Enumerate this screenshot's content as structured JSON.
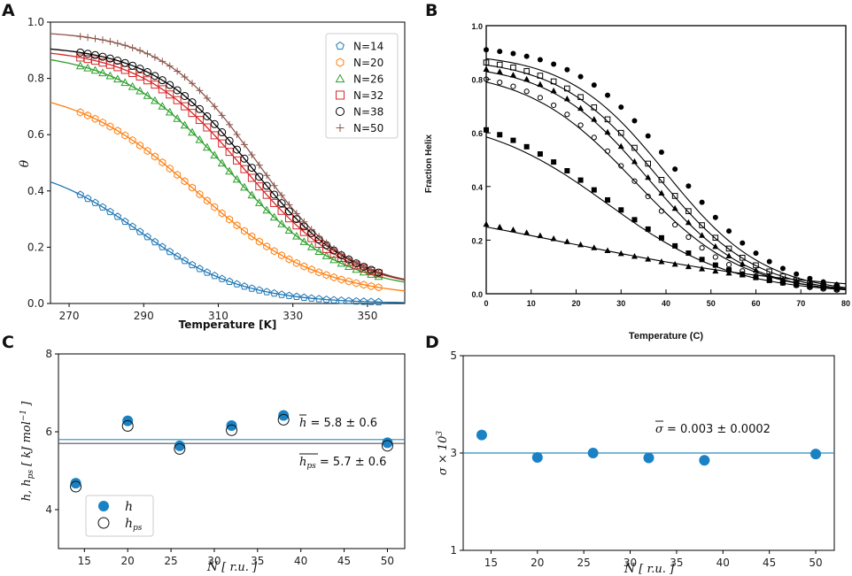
{
  "panels": {
    "a": "A",
    "b": "B",
    "c": "C",
    "d": "D"
  },
  "colors": {
    "N14": "#1f77b4",
    "N20": "#ff7f0e",
    "N26": "#2ca02c",
    "N32": "#d62728",
    "N38": "#000000",
    "N50": "#8c564b",
    "fit_c": "#4a4a4a",
    "dots": "#1a82c4",
    "hline": "#2b8bbf"
  },
  "chart_data": [
    {
      "id": "A",
      "type": "line",
      "title": "",
      "xlabel": "Temperature [K]",
      "ylabel": "θ",
      "xlim": [
        265,
        360
      ],
      "ylim": [
        0.0,
        1.0
      ],
      "xticks": [
        270,
        290,
        310,
        330,
        350
      ],
      "xtick_labels": [
        "270",
        "290",
        "310",
        "330",
        "350"
      ],
      "yticks": [
        0.0,
        0.2,
        0.4,
        0.6,
        0.8,
        1.0
      ],
      "ytick_labels": [
        "0.0",
        "0.2",
        "0.4",
        "0.6",
        "0.8",
        "1.0"
      ],
      "legend_position": "top-right",
      "points_x_range": [
        273,
        353,
        2
      ],
      "series": [
        {
          "name": "N=14",
          "marker": "pentagon",
          "color": "#1f77b4",
          "start": 0.51,
          "end": 0.0,
          "mid": 289,
          "width": 14
        },
        {
          "name": "N=20",
          "marker": "hexagon",
          "color": "#ff7f0e",
          "start": 0.78,
          "end": 0.02,
          "mid": 304,
          "width": 16.5
        },
        {
          "name": "N=26",
          "marker": "triangle",
          "color": "#2ca02c",
          "start": 0.9,
          "end": 0.04,
          "mid": 313,
          "width": 15
        },
        {
          "name": "N=32",
          "marker": "square",
          "color": "#d62728",
          "start": 0.91,
          "end": 0.045,
          "mid": 317,
          "width": 14
        },
        {
          "name": "N=38",
          "marker": "circle",
          "color": "#000000",
          "start": 0.92,
          "end": 0.045,
          "mid": 319,
          "width": 13.5
        },
        {
          "name": "N=50",
          "marker": "plus",
          "color": "#8c564b",
          "start": 0.97,
          "end": 0.05,
          "mid": 320,
          "width": 12.5
        }
      ]
    },
    {
      "id": "B",
      "type": "scatter",
      "title": "",
      "xlabel": "Temperature  (C)",
      "ylabel": "Fraction  Helix",
      "xlim": [
        0,
        80
      ],
      "ylim": [
        0.0,
        1.0
      ],
      "xticks": [
        0,
        10,
        20,
        30,
        40,
        50,
        60,
        70,
        80
      ],
      "xtick_labels": [
        "0",
        "10",
        "20",
        "30",
        "40",
        "50",
        "60",
        "70",
        "80"
      ],
      "yticks": [
        0.0,
        0.2,
        0.4,
        0.6,
        0.8,
        1.0
      ],
      "ytick_labels": [
        "0.0",
        "0.2",
        "0.4",
        "0.6",
        "0.8",
        "1.0"
      ],
      "series": [
        {
          "name": "filled-circle",
          "marker": "filled-circle",
          "step": 3,
          "start": 0.93,
          "end": 0.0,
          "mid": 42,
          "width": 11,
          "fit": [
            0.9,
            0.0,
            40,
            11
          ]
        },
        {
          "name": "open-square",
          "marker": "open-square",
          "step": 3,
          "start": 0.89,
          "end": 0.0,
          "mid": 38,
          "width": 11,
          "fit": [
            0.88,
            0.0,
            38,
            11
          ]
        },
        {
          "name": "filled-triangle-up",
          "marker": "filled-triangle",
          "step": 3,
          "start": 0.87,
          "end": 0.0,
          "mid": 36,
          "width": 11,
          "fit": [
            0.86,
            0.0,
            36,
            11
          ]
        },
        {
          "name": "open-circle",
          "marker": "open-circle",
          "step": 3,
          "start": 0.84,
          "end": 0.0,
          "mid": 33,
          "width": 11,
          "fit": [
            0.84,
            0.0,
            33,
            12
          ]
        },
        {
          "name": "filled-square",
          "marker": "filled-square",
          "step": 3,
          "start": 0.7,
          "end": 0.0,
          "mid": 27,
          "width": 14,
          "fit": [
            0.67,
            0.0,
            27,
            14
          ]
        },
        {
          "name": "filled-triangle-low",
          "marker": "filled-triangle",
          "step": 3,
          "start": 0.39,
          "end": 0.0,
          "mid": 18,
          "width": 26,
          "fit": [
            0.38,
            0.0,
            18,
            28
          ]
        }
      ]
    },
    {
      "id": "C",
      "type": "scatter",
      "title": "",
      "xlabel": "N [ r.u. ]",
      "ylabel": "h, h_ps [ kJ mol^-1 ]",
      "xlim": [
        12,
        52
      ],
      "ylim": [
        3.0,
        8.0
      ],
      "xticks": [
        15,
        20,
        25,
        30,
        35,
        40,
        45,
        50
      ],
      "xtick_labels": [
        "15",
        "20",
        "25",
        "30",
        "35",
        "40",
        "45",
        "50"
      ],
      "yticks": [
        4,
        6,
        8
      ],
      "ytick_labels": [
        "4",
        "6",
        "8"
      ],
      "x": [
        14,
        20,
        26,
        32,
        38,
        50
      ],
      "series": [
        {
          "name": "h",
          "label": "h",
          "values": [
            4.68,
            6.28,
            5.64,
            6.16,
            6.42,
            5.72
          ]
        },
        {
          "name": "h_ps",
          "label": "h",
          "sub": "ps",
          "values": [
            4.59,
            6.15,
            5.56,
            6.04,
            6.31,
            5.64
          ]
        }
      ],
      "hlines": [
        {
          "name": "h_mean",
          "value": 5.8,
          "color": "#2b8bbf"
        },
        {
          "name": "hps_mean",
          "value": 5.7,
          "color": "#555555"
        }
      ],
      "annotations": [
        {
          "name": "h-mean",
          "text": "h = 5.8 ± 0.6"
        },
        {
          "name": "hps-mean",
          "text": "h_ps = 5.7 ± 0.6"
        }
      ],
      "legend_position": "bottom-left"
    },
    {
      "id": "D",
      "type": "scatter",
      "title": "",
      "xlabel": "N [ r.u. ]",
      "ylabel": "σ × 10^3",
      "xlim": [
        12,
        52
      ],
      "ylim": [
        1,
        5
      ],
      "xticks": [
        15,
        20,
        25,
        30,
        35,
        40,
        45,
        50
      ],
      "xtick_labels": [
        "15",
        "20",
        "25",
        "30",
        "35",
        "40",
        "45",
        "50"
      ],
      "yticks": [
        1,
        3,
        5
      ],
      "ytick_labels": [
        "1",
        "3",
        "5"
      ],
      "x": [
        14,
        20,
        26,
        32,
        38,
        50
      ],
      "series": [
        {
          "name": "sigma",
          "values": [
            3.37,
            2.91,
            3.0,
            2.9,
            2.85,
            2.98
          ]
        }
      ],
      "hlines": [
        {
          "name": "sigma_mean",
          "value": 3.0,
          "color": "#2b8bbf"
        }
      ],
      "annotations": [
        {
          "name": "sigma-mean",
          "text": "σ = 0.003 ± 0.0002"
        }
      ]
    }
  ],
  "labels": {
    "A_xlabel": "Temperature [K]",
    "A_ylabel": "θ",
    "B_xlabel": "Temperature  (C)",
    "B_ylabel": "Fraction  Helix",
    "C_annot_h_prefix": "h",
    "C_annot_h_value": " = 5.8 ± 0.6",
    "C_annot_hps_prefix": "h",
    "C_annot_hps_sub": "ps",
    "C_annot_hps_value": " = 5.7 ± 0.6",
    "C_legend_h": "h",
    "C_legend_hps": "h",
    "C_legend_hps_sub": "ps",
    "C_ylabel_main": "h, h",
    "C_ylabel_sub": "ps",
    "C_ylabel_unit": " [ kJ mol",
    "C_ylabel_exp": "−1",
    "C_ylabel_close": " ]",
    "xlabel_N": "N",
    "xlabel_ru": " [ r.u. ]",
    "D_annot_prefix": "σ",
    "D_annot_value": " = 0.003 ± 0.0002",
    "D_ylabel_main": "σ × 10",
    "D_ylabel_exp": "3"
  }
}
